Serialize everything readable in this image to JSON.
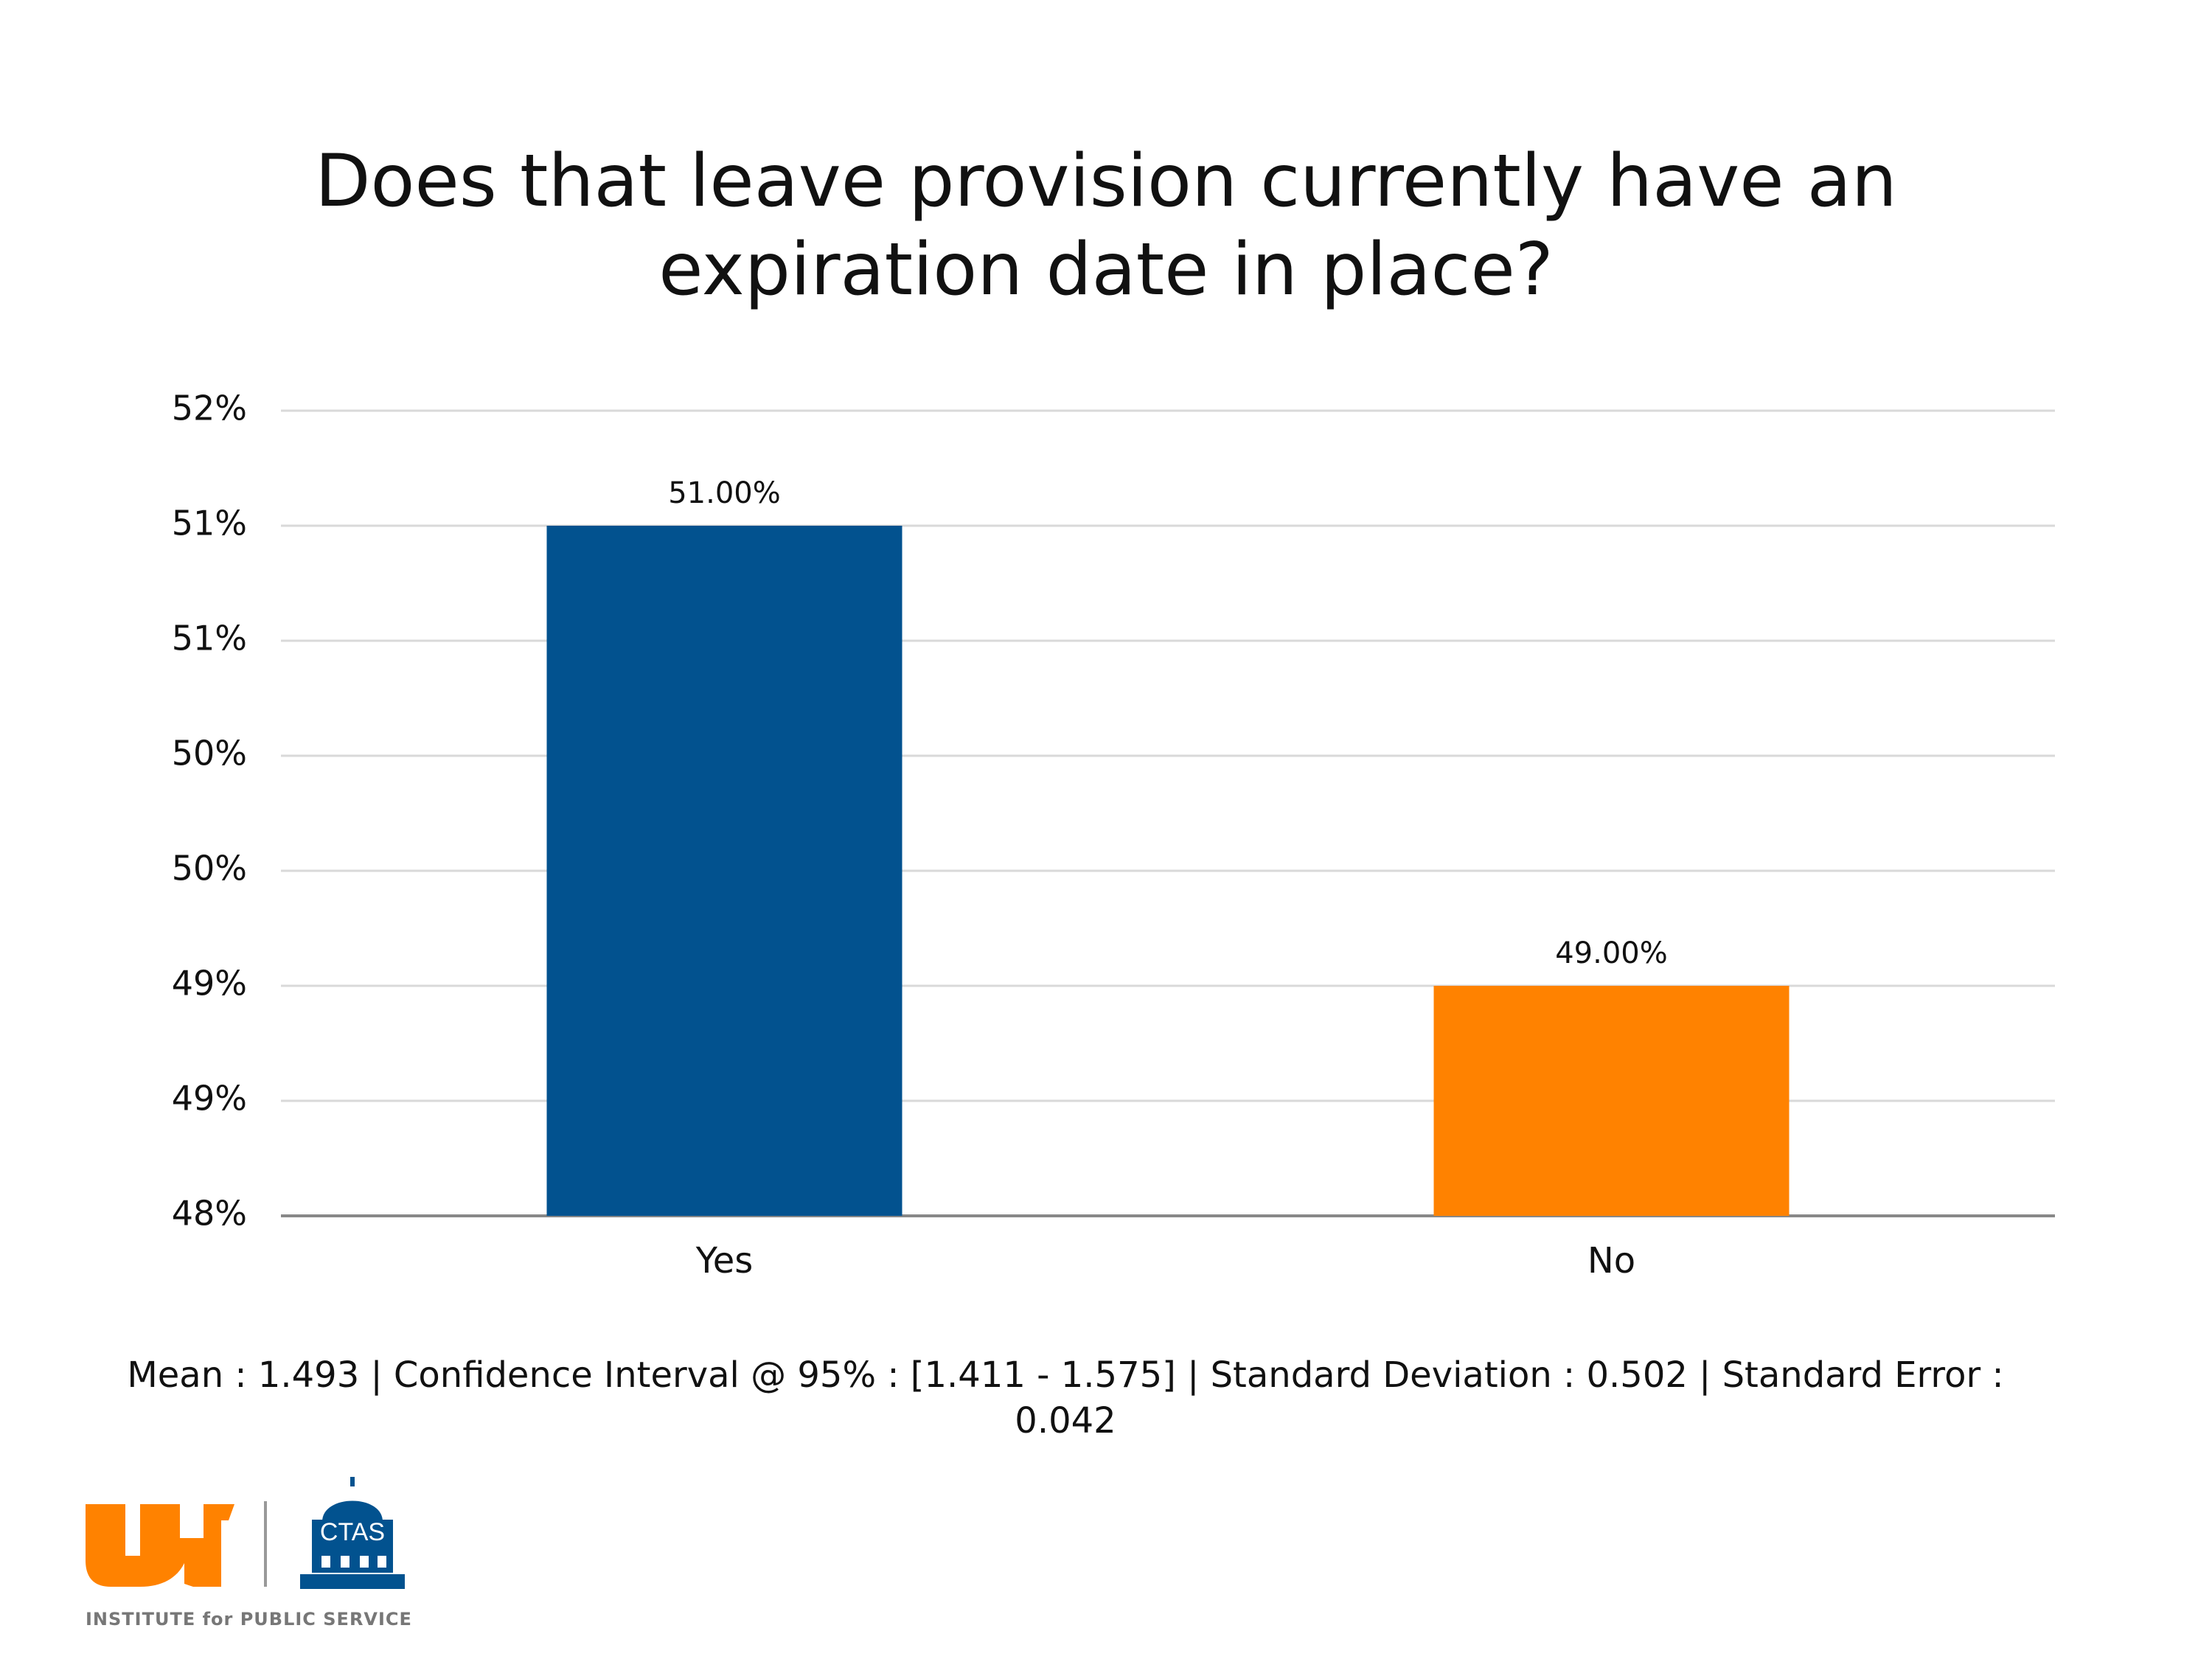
{
  "chart_data": {
    "type": "bar",
    "title": [
      "Does that leave provision currently have an",
      "expiration date in place?"
    ],
    "categories": [
      "Yes",
      "No"
    ],
    "values": [
      51,
      49
    ],
    "value_labels": [
      "51.00%",
      "49.00%"
    ],
    "colors": [
      "#02528f",
      "#ff8200"
    ],
    "ylim": [
      48,
      51.5
    ],
    "yticks": [
      {
        "value": 48,
        "label": "48%"
      },
      {
        "value": 48.5,
        "label": "49%"
      },
      {
        "value": 49,
        "label": "49%"
      },
      {
        "value": 49.5,
        "label": "50%"
      },
      {
        "value": 50,
        "label": "50%"
      },
      {
        "value": 50.5,
        "label": "51%"
      },
      {
        "value": 51,
        "label": "51%"
      },
      {
        "value": 51.5,
        "label": "52%"
      }
    ],
    "grid": true
  },
  "footer": {
    "stats": "Mean : 1.493  |  Confidence Interval @ 95% : [1.411 - 1.575]  |  Standard Deviation : 0.502  |  Standard Error : 0.042",
    "logo_badge": "CTAS",
    "logo_caption": "INSTITUTE for PUBLIC SERVICE"
  }
}
